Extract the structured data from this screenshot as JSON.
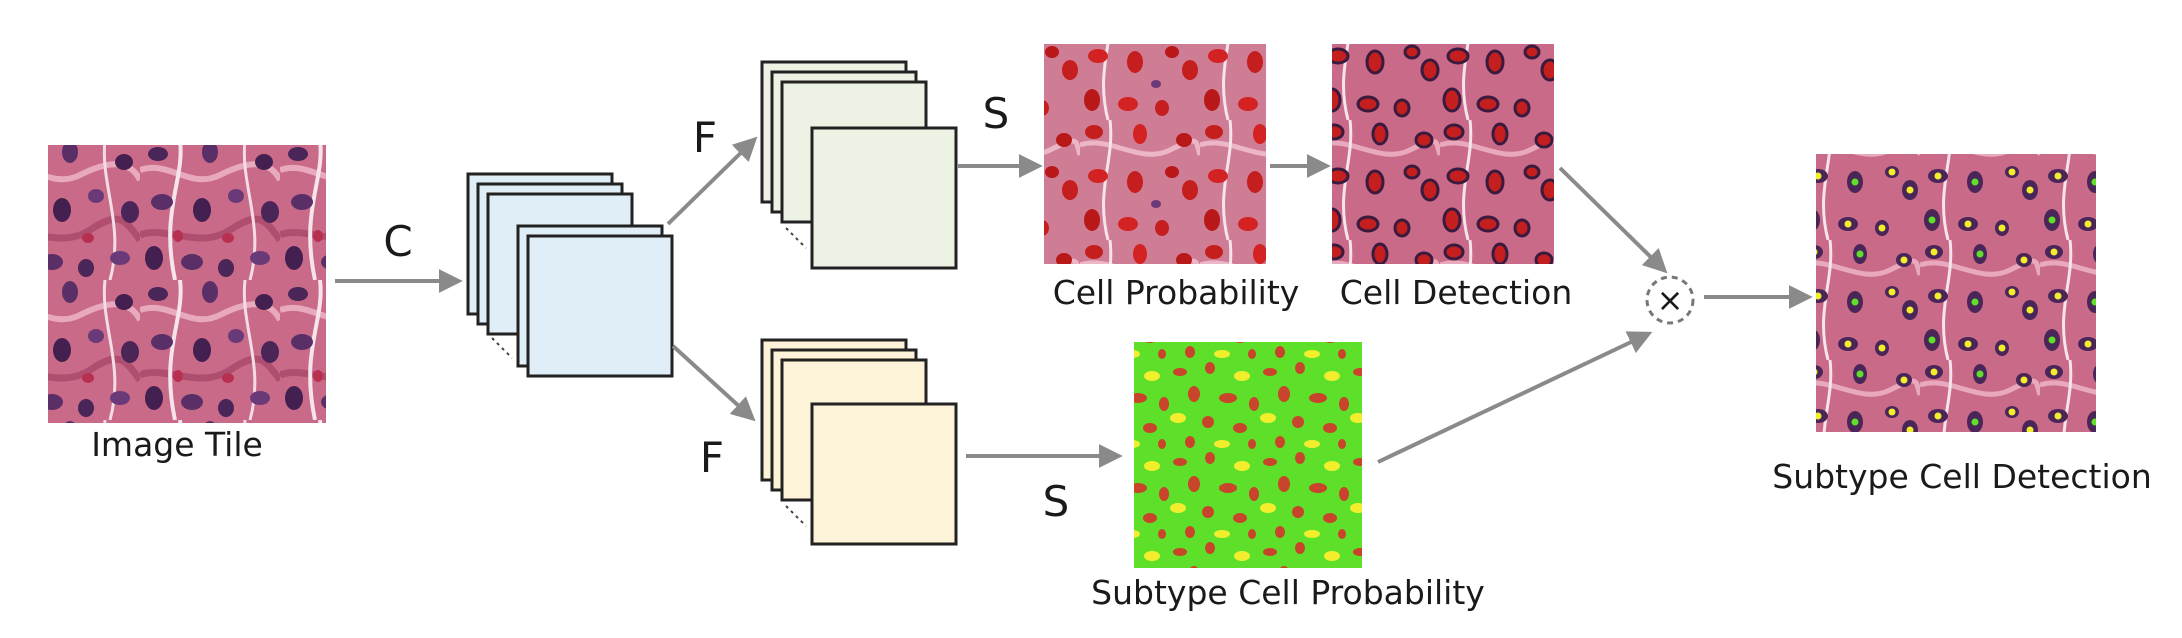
{
  "labels": {
    "image_tile": "Image Tile",
    "cell_probability": "Cell Probability",
    "cell_detection": "Cell Detection",
    "subtype_cell_probability": "Subtype Cell Probability",
    "subtype_cell_detection": "Subtype Cell Detection"
  },
  "operations": {
    "c": "C",
    "f_top": "F",
    "f_bottom": "F",
    "s_top": "S",
    "s_bottom": "S",
    "multiply": "×"
  },
  "colors": {
    "tissue_pink": "#c0607e",
    "nucleus_purple": "#4a2558",
    "cell_red": "#c41e1e",
    "subtype_green": "#5ee02a",
    "subtype_yellow": "#f2ee2e",
    "conv_feature_fill": "#dfeef7",
    "f_top_feature_fill": "#edf3e4",
    "f_bottom_feature_fill": "#fdf3d8",
    "arrow": "#8a8a8a"
  },
  "icons": {
    "image_tile": "histology-image-icon",
    "multiply": "multiply-circle-icon"
  }
}
